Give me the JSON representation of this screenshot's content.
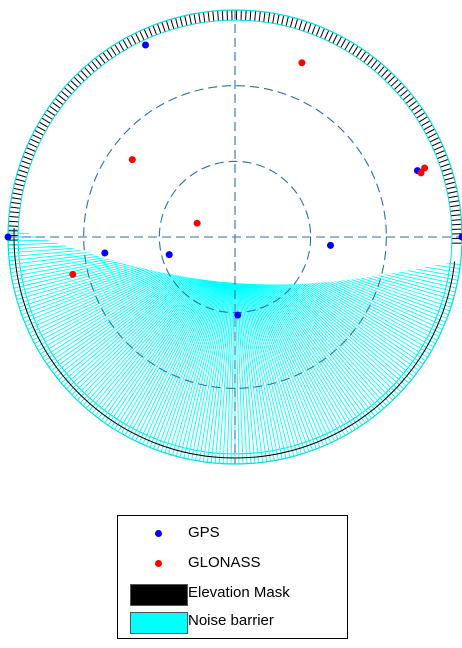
{
  "chart_data": {
    "type": "scatter",
    "polar": true,
    "title": "",
    "description_of_axes": "Sky plot: azimuth around the circle, elevation from horizon (outer ring) to zenith (centre); dashed rings at 30° and 60° elevation",
    "elevation_rings_deg": [
      0,
      30,
      60
    ],
    "series": [
      {
        "name": "GPS",
        "color": "#0000ff",
        "points": [
          {
            "azimuth": 335,
            "elevation": 6
          },
          {
            "azimuth": 270,
            "elevation": 0
          },
          {
            "azimuth": 263,
            "elevation": 38
          },
          {
            "azimuth": 255,
            "elevation": 63
          },
          {
            "azimuth": 95,
            "elevation": 52
          },
          {
            "azimuth": 70,
            "elevation": 13
          },
          {
            "azimuth": 90,
            "elevation": 0
          },
          {
            "azimuth": 178,
            "elevation": 59
          }
        ]
      },
      {
        "name": "GLONASS",
        "color": "#ff0000",
        "points": [
          {
            "azimuth": 21,
            "elevation": 16
          },
          {
            "azimuth": 307,
            "elevation": 39
          },
          {
            "azimuth": 290,
            "elevation": 74
          },
          {
            "azimuth": 71,
            "elevation": 12
          },
          {
            "azimuth": 70,
            "elevation": 10
          },
          {
            "azimuth": 257,
            "elevation": 24
          }
        ]
      }
    ],
    "elevation_mask": {
      "name": "Elevation Mask",
      "color": "#000000",
      "max_elevation_deg": 4
    },
    "noise_barrier": {
      "name": "Noise barrier",
      "color": "#00ffff"
    }
  },
  "legend": {
    "items": [
      {
        "label": "GPS",
        "kind": "dot",
        "color": "#0000ff"
      },
      {
        "label": "GLONASS",
        "kind": "dot",
        "color": "#ff0000"
      },
      {
        "label": "Elevation Mask",
        "kind": "patch",
        "color": "#000000"
      },
      {
        "label": "Noise barrier",
        "kind": "patch",
        "color": "#00ffff"
      }
    ]
  }
}
